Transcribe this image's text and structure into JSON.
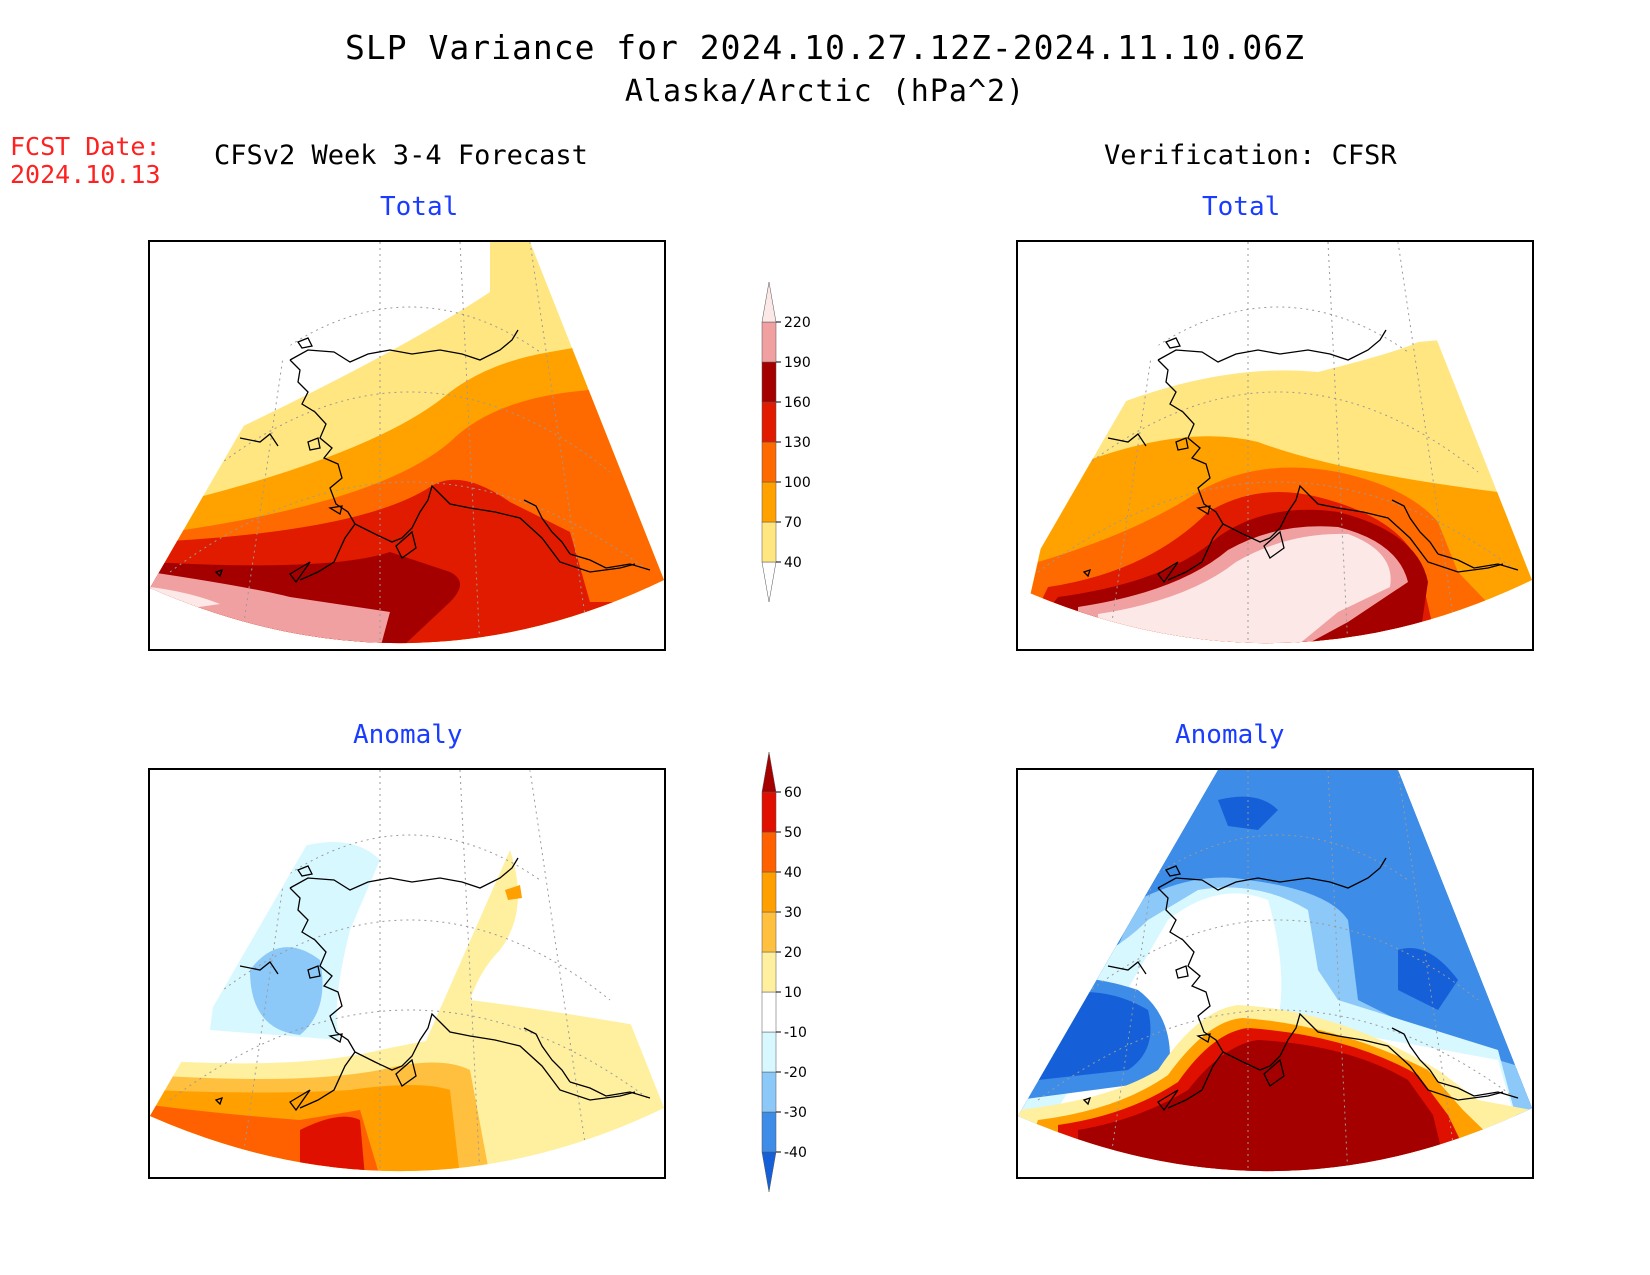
{
  "header": {
    "title": "SLP Variance for 2024.10.27.12Z-2024.11.10.06Z",
    "subtitle": "Alaska/Arctic (hPa^2)"
  },
  "fcst": {
    "label": "FCST Date:",
    "date": "2024.10.13"
  },
  "columns": {
    "left": "CFSv2 Week 3-4 Forecast",
    "right": "Verification: CFSR"
  },
  "panels": {
    "total_label": "Total",
    "anomaly_label": "Anomaly"
  },
  "colorbars": {
    "total": {
      "ticks": [
        "40",
        "70",
        "100",
        "130",
        "160",
        "190",
        "220"
      ],
      "colors": [
        "#ffffff",
        "#ffe680",
        "#ffa200",
        "#ff6a00",
        "#e01b00",
        "#a50000",
        "#f0a0a0",
        "#fde8e8"
      ]
    },
    "anomaly": {
      "ticks": [
        "-40",
        "-30",
        "-20",
        "-10",
        "10",
        "20",
        "30",
        "40",
        "50",
        "60"
      ],
      "colors": [
        "#1560d8",
        "#3c8ce8",
        "#8cc8f8",
        "#d8f8ff",
        "#ffffff",
        "#fff0a0",
        "#ffc040",
        "#ffa000",
        "#ff6000",
        "#e01000",
        "#a50000"
      ]
    }
  }
}
